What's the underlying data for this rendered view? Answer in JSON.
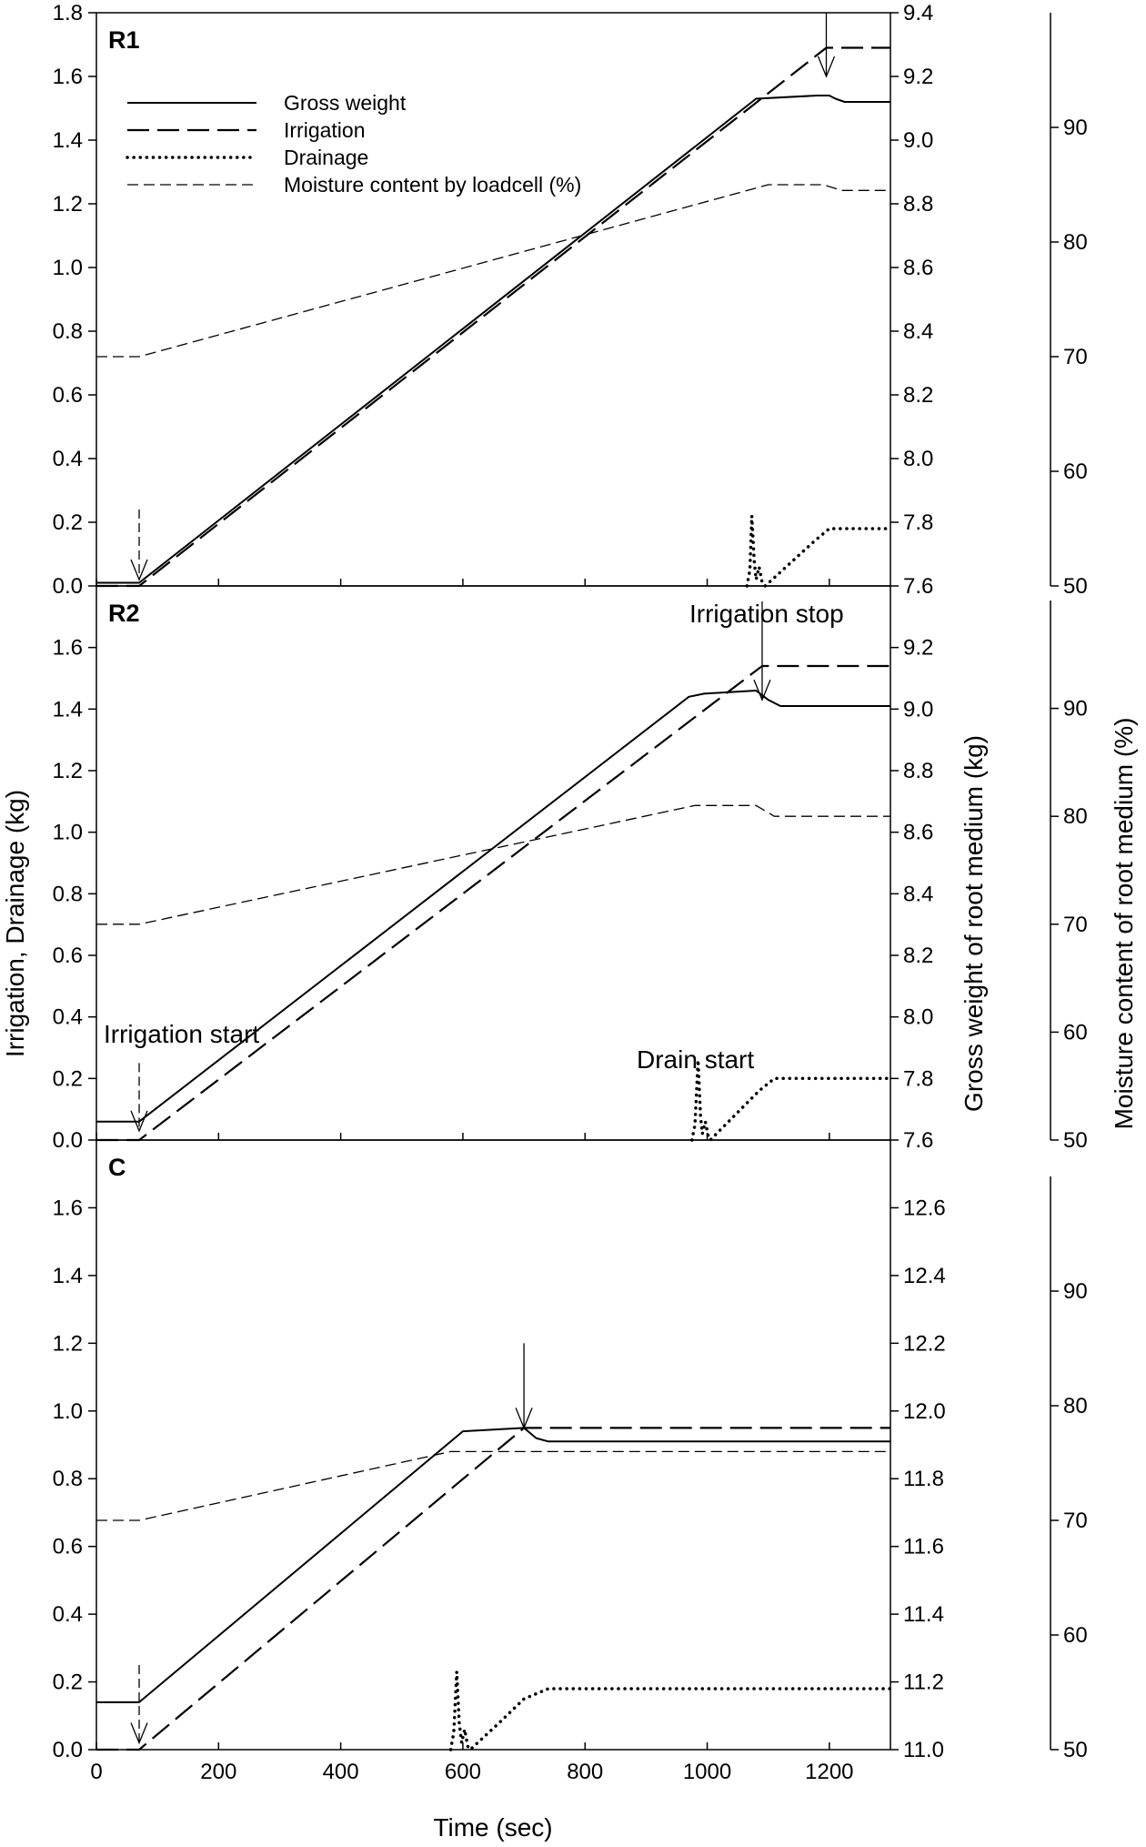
{
  "chart_data": {
    "type": "line",
    "x_label": "Time (sec)",
    "left_label": "Irrigation, Drainage (kg)",
    "right_label": "Gross weight of root medium (kg)",
    "far_right_label": "Moisture content of root medium (%)",
    "x_range": [
      0,
      1300
    ],
    "x_ticks": [
      0,
      200,
      400,
      600,
      800,
      1000,
      1200
    ],
    "legend": {
      "placement": "top-left of first panel",
      "entries": [
        {
          "label": "Gross weight",
          "style": "solid"
        },
        {
          "label": "Irrigation",
          "style": "long-dash"
        },
        {
          "label": "Drainage",
          "style": "dotted"
        },
        {
          "label": "Moisture content by loadcell (%)",
          "style": "short-dash"
        }
      ]
    },
    "annotations": {
      "irrigation_start": "Irrigation start",
      "irrigation_stop": "Irrigation stop",
      "drain_start": "Drain start"
    },
    "panels": [
      {
        "label": "R1",
        "left_axis": {
          "range": [
            0,
            1.8
          ],
          "ticks": [
            "0.0",
            "0.2",
            "0.4",
            "0.6",
            "0.8",
            "1.0",
            "1.2",
            "1.4",
            "1.6",
            "1.8"
          ]
        },
        "right_axis": {
          "range": [
            7.6,
            9.4
          ],
          "ticks": [
            "7.6",
            "7.8",
            "8.0",
            "8.2",
            "8.4",
            "8.6",
            "8.8",
            "9.0",
            "9.2",
            "9.4"
          ]
        },
        "moisture_axis": {
          "range": [
            50,
            100
          ],
          "ticks": [
            "50",
            "60",
            "70",
            "80",
            "90"
          ]
        },
        "series": [
          {
            "name": "Gross weight",
            "axis": "right",
            "points": [
              [
                0,
                7.61
              ],
              [
                70,
                7.61
              ],
              [
                1080,
                9.13
              ],
              [
                1180,
                9.14
              ],
              [
                1200,
                9.14
              ],
              [
                1210,
                9.13
              ],
              [
                1225,
                9.12
              ],
              [
                1300,
                9.12
              ]
            ]
          },
          {
            "name": "Irrigation",
            "axis": "left",
            "points": [
              [
                0,
                0
              ],
              [
                70,
                0
              ],
              [
                1195,
                1.69
              ],
              [
                1300,
                1.69
              ]
            ]
          },
          {
            "name": "Drainage",
            "axis": "left",
            "points": [
              [
                1065,
                0
              ],
              [
                1070,
                0.05
              ],
              [
                1073,
                0.22
              ],
              [
                1077,
                0.08
              ],
              [
                1080,
                0.02
              ],
              [
                1085,
                0.06
              ],
              [
                1090,
                0.01
              ],
              [
                1095,
                0
              ],
              [
                1135,
                0.07
              ],
              [
                1175,
                0.14
              ],
              [
                1200,
                0.18
              ],
              [
                1230,
                0.18
              ],
              [
                1300,
                0.18
              ]
            ]
          },
          {
            "name": "Moisture content by loadcell (%)",
            "axis": "moisture",
            "points": [
              [
                0,
                70
              ],
              [
                70,
                70
              ],
              [
                1100,
                85
              ],
              [
                1190,
                85
              ],
              [
                1220,
                84.5
              ],
              [
                1300,
                84.5
              ]
            ]
          }
        ],
        "arrows": [
          {
            "x": 70,
            "style": "dashed",
            "from_left": 0.24,
            "to_left": 0.02
          },
          {
            "x": 1195,
            "style": "solid",
            "from_left": 1.8,
            "to_left": 1.6
          }
        ]
      },
      {
        "label": "R2",
        "left_axis": {
          "range": [
            0,
            1.8
          ],
          "ticks": [
            "0.0",
            "0.2",
            "0.4",
            "0.6",
            "0.8",
            "1.0",
            "1.2",
            "1.4",
            "1.6"
          ]
        },
        "right_axis": {
          "range": [
            7.6,
            9.4
          ],
          "ticks": [
            "7.6",
            "7.8",
            "8.0",
            "8.2",
            "8.4",
            "8.6",
            "8.8",
            "9.0",
            "9.2"
          ]
        },
        "moisture_axis": {
          "range": [
            50,
            100
          ],
          "ticks": [
            "50",
            "60",
            "70",
            "80",
            "90"
          ]
        },
        "series": [
          {
            "name": "Gross weight",
            "axis": "right",
            "points": [
              [
                0,
                7.66
              ],
              [
                70,
                7.66
              ],
              [
                970,
                9.04
              ],
              [
                995,
                9.05
              ],
              [
                1080,
                9.06
              ],
              [
                1100,
                9.03
              ],
              [
                1120,
                9.01
              ],
              [
                1300,
                9.01
              ]
            ]
          },
          {
            "name": "Irrigation",
            "axis": "left",
            "points": [
              [
                0,
                0
              ],
              [
                70,
                0
              ],
              [
                1090,
                1.54
              ],
              [
                1300,
                1.54
              ]
            ]
          },
          {
            "name": "Drainage",
            "axis": "left",
            "points": [
              [
                975,
                0
              ],
              [
                980,
                0.05
              ],
              [
                985,
                0.26
              ],
              [
                989,
                0.08
              ],
              [
                992,
                0.02
              ],
              [
                997,
                0.06
              ],
              [
                1002,
                0.01
              ],
              [
                1005,
                0
              ],
              [
                1045,
                0.08
              ],
              [
                1085,
                0.16
              ],
              [
                1110,
                0.2
              ],
              [
                1150,
                0.2
              ],
              [
                1300,
                0.2
              ]
            ]
          },
          {
            "name": "Moisture content by loadcell (%)",
            "axis": "moisture",
            "points": [
              [
                0,
                70
              ],
              [
                70,
                70
              ],
              [
                980,
                81
              ],
              [
                1080,
                81
              ],
              [
                1110,
                80
              ],
              [
                1300,
                80
              ]
            ]
          }
        ],
        "arrows": [
          {
            "x": 70,
            "style": "dashed",
            "from_left": 0.25,
            "to_left": 0.03
          },
          {
            "x": 1090,
            "style": "solid",
            "from_left": 1.75,
            "to_left": 1.43
          }
        ]
      },
      {
        "label": "C",
        "left_axis": {
          "range": [
            0,
            1.8
          ],
          "ticks": [
            "0.0",
            "0.2",
            "0.4",
            "0.6",
            "0.8",
            "1.0",
            "1.2",
            "1.4",
            "1.6"
          ]
        },
        "right_axis": {
          "range": [
            11.0,
            12.8
          ],
          "ticks": [
            "11.0",
            "11.2",
            "11.4",
            "11.6",
            "11.8",
            "12.0",
            "12.2",
            "12.4",
            "12.6"
          ]
        },
        "moisture_axis": {
          "range": [
            50,
            100
          ],
          "ticks": [
            "50",
            "60",
            "70",
            "80",
            "90"
          ]
        },
        "series": [
          {
            "name": "Gross weight",
            "axis": "right",
            "points": [
              [
                0,
                11.14
              ],
              [
                70,
                11.14
              ],
              [
                600,
                11.94
              ],
              [
                700,
                11.95
              ],
              [
                720,
                11.92
              ],
              [
                740,
                11.91
              ],
              [
                1300,
                11.91
              ]
            ]
          },
          {
            "name": "Irrigation",
            "axis": "left",
            "points": [
              [
                0,
                0
              ],
              [
                70,
                0
              ],
              [
                700,
                0.95
              ],
              [
                1300,
                0.95
              ]
            ]
          },
          {
            "name": "Drainage",
            "axis": "left",
            "points": [
              [
                580,
                0
              ],
              [
                585,
                0.05
              ],
              [
                590,
                0.23
              ],
              [
                594,
                0.08
              ],
              [
                598,
                0.02
              ],
              [
                603,
                0.06
              ],
              [
                608,
                0.01
              ],
              [
                612,
                0
              ],
              [
                660,
                0.08
              ],
              [
                700,
                0.15
              ],
              [
                740,
                0.18
              ],
              [
                800,
                0.18
              ],
              [
                1300,
                0.18
              ]
            ]
          },
          {
            "name": "Moisture content by loadcell (%)",
            "axis": "moisture",
            "points": [
              [
                0,
                70
              ],
              [
                70,
                70
              ],
              [
                580,
                76
              ],
              [
                700,
                76
              ],
              [
                1300,
                76
              ]
            ]
          }
        ],
        "arrows": [
          {
            "x": 70,
            "style": "dashed",
            "from_left": 0.25,
            "to_left": 0.02
          },
          {
            "x": 700,
            "style": "solid",
            "from_left": 1.2,
            "to_left": 0.95
          }
        ]
      }
    ]
  }
}
